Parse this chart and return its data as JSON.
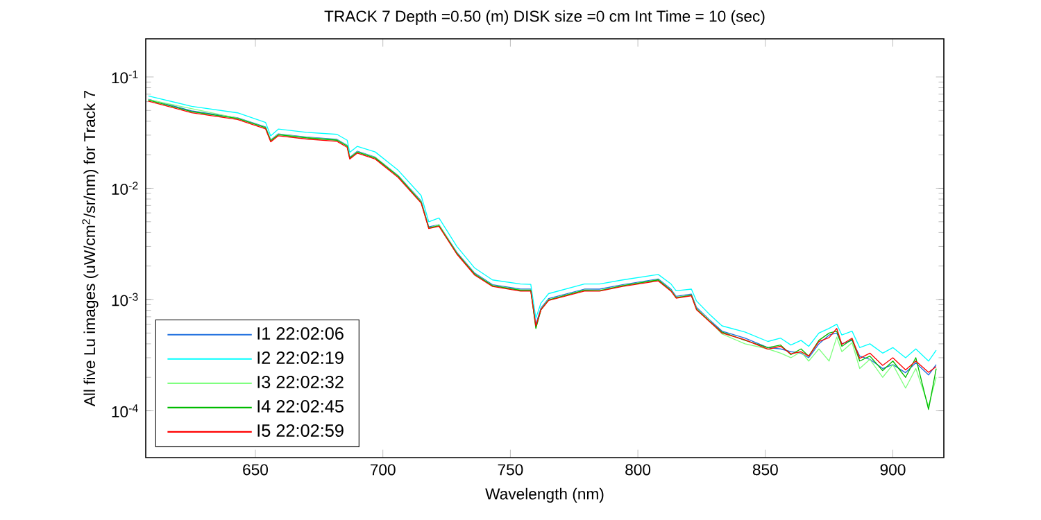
{
  "chart_data": {
    "type": "line",
    "title": "TRACK 7 Depth =0.50 (m) DISK size =0 cm   Int Time = 10 (sec)",
    "xlabel": "Wavelength (nm)",
    "ylabel": "All five Lu images (uW/cm$^{2}$/sr/nm) for Track 7",
    "log": "y",
    "legend": "bottom left",
    "xlim": [
      607,
      920
    ],
    "ylim": [
      3.8e-05,
      0.22
    ],
    "xticks": [
      650,
      700,
      750,
      800,
      850,
      900
    ],
    "yticks": [
      {
        "value": 0.0001,
        "label": "10$^{-4}$"
      },
      {
        "value": 0.001,
        "label": "10$^{-3}$"
      },
      {
        "value": 0.01,
        "label": "10$^{-2}$"
      },
      {
        "value": 0.1,
        "label": "10$^{-1}$"
      }
    ],
    "x": [
      608,
      625,
      643,
      654,
      656,
      659,
      670,
      682,
      686,
      687,
      690,
      697,
      706,
      715,
      718,
      722,
      729,
      736,
      743,
      754,
      758,
      760,
      762,
      765,
      779,
      785,
      794,
      808,
      813,
      815,
      821,
      823,
      828,
      833,
      842,
      851,
      856,
      860,
      864,
      867,
      871,
      875,
      878,
      880,
      884,
      887,
      891,
      896,
      900,
      905,
      909,
      914,
      917
    ],
    "series": [
      {
        "name": "I1 22:02:06",
        "color": "#1f6fdf",
        "values": [
          0.063,
          0.0496,
          0.043,
          0.0355,
          0.0272,
          0.0308,
          0.0288,
          0.0275,
          0.0243,
          0.019,
          0.0215,
          0.019,
          0.013,
          0.0077,
          0.0045,
          0.0047,
          0.00266,
          0.00173,
          0.00136,
          0.00124,
          0.00124,
          0.0006,
          0.00084,
          0.00102,
          0.00124,
          0.00124,
          0.00136,
          0.00153,
          0.00124,
          0.00107,
          0.00112,
          0.00085,
          0.00066,
          0.00052,
          0.00045,
          0.00037,
          0.00036,
          0.00034,
          0.00033,
          0.0003,
          0.0004,
          0.00048,
          0.0005,
          0.0004,
          0.00043,
          0.00031,
          0.00029,
          0.00024,
          0.00026,
          0.00022,
          0.00027,
          0.00021,
          0.00026
        ]
      },
      {
        "name": "I2 22:02:19",
        "color": "#00ffff",
        "values": [
          0.0675,
          0.0545,
          0.0476,
          0.039,
          0.0295,
          0.034,
          0.0318,
          0.0305,
          0.027,
          0.021,
          0.0238,
          0.0212,
          0.0145,
          0.0086,
          0.005,
          0.0054,
          0.003,
          0.00192,
          0.0015,
          0.00138,
          0.00137,
          0.00068,
          0.00093,
          0.00113,
          0.00138,
          0.00138,
          0.0015,
          0.00168,
          0.00138,
          0.0012,
          0.00124,
          0.00097,
          0.00074,
          0.00058,
          0.00051,
          0.00042,
          0.00045,
          0.00039,
          0.00043,
          0.00038,
          0.0005,
          0.00055,
          0.0006,
          0.00048,
          0.00052,
          0.00037,
          0.0004,
          0.00033,
          0.00037,
          0.0003,
          0.00036,
          0.00028,
          0.00035
        ]
      },
      {
        "name": "I3 22:02:32",
        "color": "#80ff80",
        "values": [
          0.0625,
          null,
          0.0427,
          0.0352,
          0.027,
          0.0305,
          0.0286,
          0.0272,
          0.0241,
          0.0188,
          0.0213,
          0.0189,
          0.0129,
          0.0076,
          0.0044,
          0.0047,
          0.00262,
          0.0017,
          0.00134,
          0.00122,
          0.00122,
          0.00056,
          0.00082,
          0.001,
          0.00122,
          0.00121,
          0.00134,
          0.00151,
          0.00121,
          0.00105,
          0.0011,
          0.00083,
          0.00065,
          0.00049,
          0.0004,
          0.00036,
          0.00033,
          0.0003,
          0.00034,
          0.00028,
          0.00036,
          0.00028,
          0.00046,
          0.00034,
          0.00041,
          0.00024,
          0.00029,
          0.0002,
          0.00026,
          0.00016,
          0.00024,
          0.00011,
          0.0002
        ]
      },
      {
        "name": "I4 22:02:45",
        "color": "#00bb00",
        "values": [
          0.062,
          0.0488,
          0.0424,
          0.035,
          0.0267,
          0.0302,
          0.0284,
          0.027,
          0.0239,
          0.0187,
          0.0211,
          0.0187,
          0.0128,
          0.0075,
          0.0044,
          0.0046,
          0.0026,
          0.00169,
          0.00133,
          0.00121,
          0.00121,
          0.00055,
          0.00081,
          0.00099,
          0.00121,
          0.0012,
          0.00133,
          0.0015,
          0.0012,
          0.00104,
          0.00109,
          0.00082,
          0.00064,
          0.00051,
          0.00043,
          0.00037,
          0.00039,
          0.00032,
          0.00036,
          0.00031,
          0.00043,
          0.0005,
          0.00052,
          0.00038,
          0.00044,
          0.00028,
          0.00031,
          0.00023,
          0.00028,
          0.0002,
          0.0003,
          0.000103,
          0.00024
        ]
      },
      {
        "name": "I5 22:02:59",
        "color": "#ff0000",
        "values": [
          0.0607,
          0.0477,
          0.0414,
          0.0341,
          0.0261,
          0.0296,
          0.0277,
          0.0264,
          0.0233,
          0.0183,
          0.0207,
          0.0183,
          0.0125,
          0.00736,
          0.00434,
          0.00455,
          0.00256,
          0.00166,
          0.00131,
          0.00119,
          0.00119,
          0.000578,
          0.00081,
          0.00098,
          0.00119,
          0.00119,
          0.00131,
          0.00147,
          0.00119,
          0.00103,
          0.00108,
          0.00081,
          0.000637,
          0.0005,
          0.000434,
          0.000358,
          0.00038,
          0.000325,
          0.00034,
          0.00031,
          0.00042,
          0.000455,
          0.00055,
          0.000395,
          0.00045,
          0.000296,
          0.00033,
          0.000256,
          0.0003,
          0.000233,
          0.00028,
          0.000222,
          0.00025
        ]
      }
    ]
  }
}
